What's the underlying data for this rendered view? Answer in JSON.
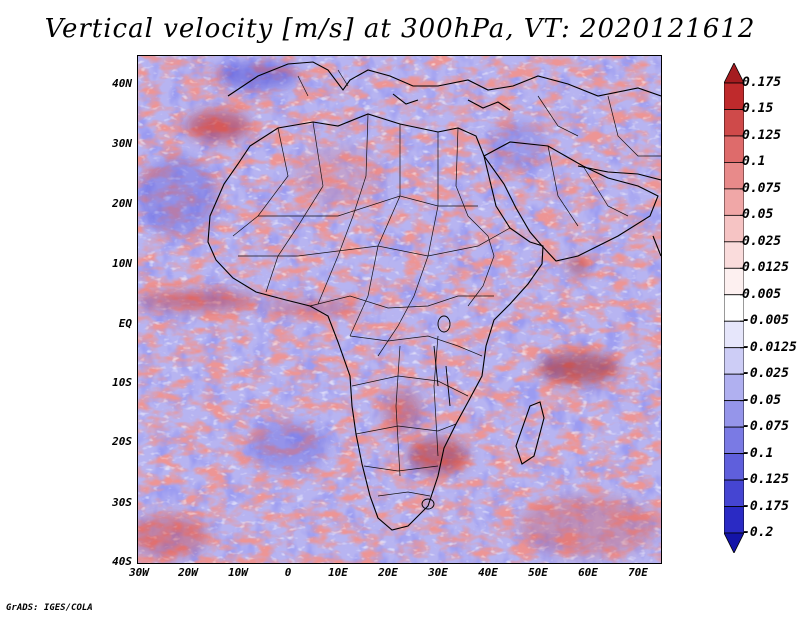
{
  "title": "Vertical velocity [m/s] at 300hPa, VT: 2020121612",
  "credit": "GrADS: IGES/COLA",
  "map": {
    "region": "Africa",
    "lat_labels": [
      "40N",
      "30N",
      "20N",
      "10N",
      "EQ",
      "10S",
      "20S",
      "30S",
      "40S"
    ],
    "lon_labels": [
      "30W",
      "20W",
      "10W",
      "0",
      "10E",
      "20E",
      "30E",
      "40E",
      "50E",
      "60E",
      "70E"
    ]
  },
  "colorbar": {
    "labels": [
      "0.175",
      "0.15",
      "0.125",
      "0.1",
      "0.075",
      "0.05",
      "0.025",
      "0.0125",
      "0.005",
      "-0.005",
      "-0.0125",
      "-0.025",
      "-0.05",
      "-0.075",
      "-0.1",
      "-0.125",
      "-0.175",
      "-0.2"
    ],
    "colors": [
      "#a51c20",
      "#bf2a2c",
      "#cf4a4a",
      "#de6b6b",
      "#e88a8a",
      "#f0a7a7",
      "#f6c4c4",
      "#fadcdc",
      "#fdf0f0",
      "#ffffff",
      "#e6e6fb",
      "#cdcdf6",
      "#b0b0f0",
      "#9595ea",
      "#7a7ae4",
      "#5f5fdc",
      "#4545d2",
      "#2a2ac4",
      "#1414a8"
    ]
  },
  "chart_data": {
    "type": "heatmap",
    "title": "Vertical velocity [m/s] at 300hPa, VT: 2020121612",
    "variable": "Vertical velocity",
    "units": "m/s",
    "level": "300hPa",
    "valid_time": "2020121612",
    "lon_range": [
      "30W",
      "75E"
    ],
    "lat_range": [
      "40S",
      "45N"
    ],
    "contour_levels": [
      -0.2,
      -0.175,
      -0.125,
      -0.1,
      -0.075,
      -0.05,
      -0.025,
      -0.0125,
      -0.005,
      0.005,
      0.0125,
      0.025,
      0.05,
      0.075,
      0.1,
      0.125,
      0.15,
      0.175
    ]
  }
}
